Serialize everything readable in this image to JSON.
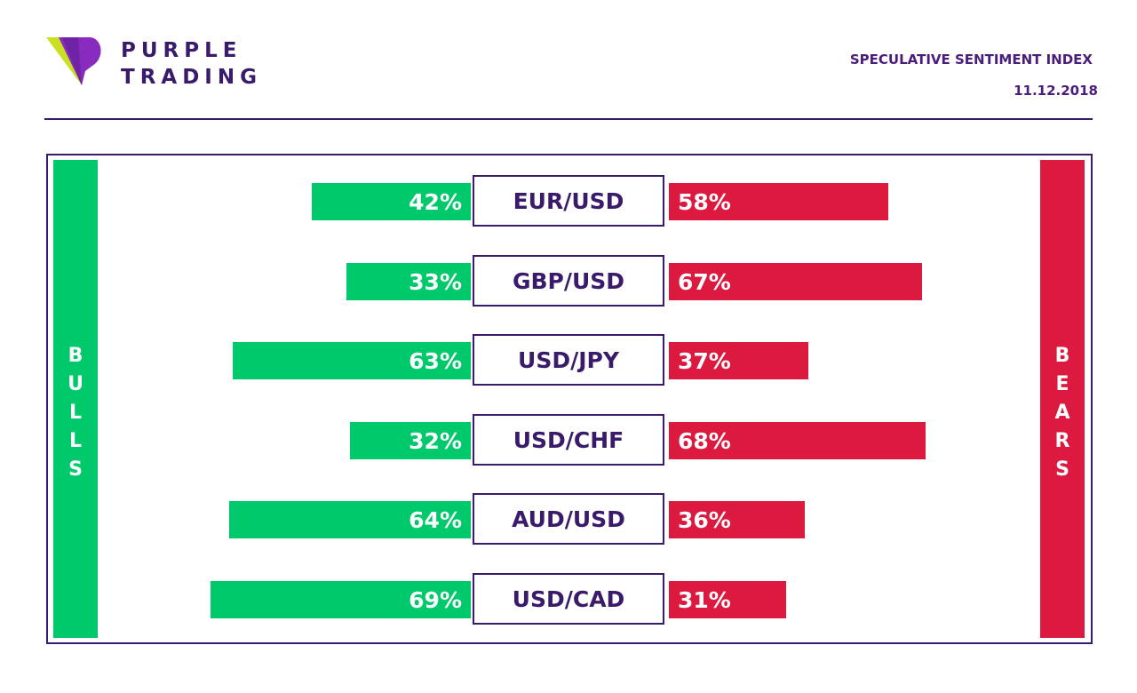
{
  "brand": {
    "line1": "PURPLE",
    "line2": "TRADING",
    "color_purple": "#3a1a6b",
    "color_lime": "#c8e021",
    "color_violet": "#8a2bbf"
  },
  "header": {
    "title": "SPECULATIVE SENTIMENT INDEX",
    "date": "11.12.2018"
  },
  "labels": {
    "bulls": "BULLS",
    "bears": "BEARS"
  },
  "colors": {
    "bulls": "#00c96b",
    "bears": "#dc1a40",
    "frame": "#3a1a6b"
  },
  "chart_data": {
    "type": "bar",
    "title": "SPECULATIVE SENTIMENT INDEX",
    "categories": [
      "EUR/USD",
      "GBP/USD",
      "USD/JPY",
      "USD/CHF",
      "AUD/USD",
      "USD/CAD"
    ],
    "series": [
      {
        "name": "BULLS",
        "values": [
          42,
          33,
          63,
          32,
          64,
          69
        ],
        "labels": [
          "42%",
          "33%",
          "63%",
          "32%",
          "64%",
          "69%"
        ]
      },
      {
        "name": "BEARS",
        "values": [
          58,
          67,
          37,
          68,
          36,
          31
        ],
        "labels": [
          "58%",
          "67%",
          "37%",
          "68%",
          "36%",
          "31%"
        ]
      }
    ],
    "unit": "%",
    "xlim": [
      0,
      100
    ]
  }
}
